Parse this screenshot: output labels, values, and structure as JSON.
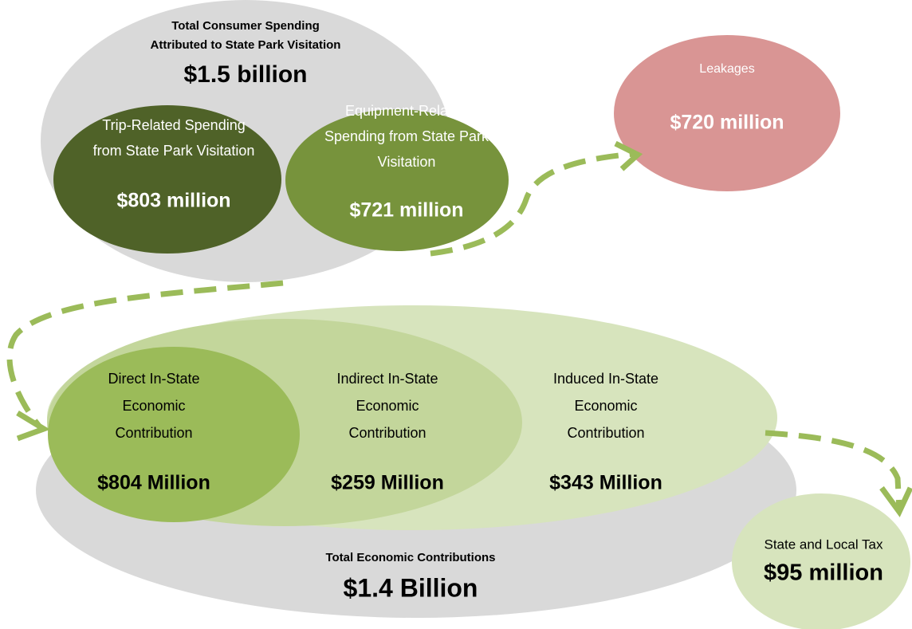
{
  "consumer_spending": {
    "title_lines": [
      "Total Consumer Spending",
      "Attributed to State Park Visitation"
    ],
    "amount": "$1.5 billion",
    "trip": {
      "label_lines": [
        "Trip-Related Spending",
        "from State Park Visitation"
      ],
      "amount": "$803 million"
    },
    "equipment": {
      "label_lines": [
        "Equipment-Related",
        "Spending from State Park",
        "Visitation"
      ],
      "amount": "$721 million"
    }
  },
  "leakages": {
    "label": "Leakages",
    "amount": "$720 million"
  },
  "economic_contributions": {
    "title": "Total Economic Contributions",
    "amount": "$1.4 Billion",
    "direct": {
      "label_lines": [
        "Direct In-State",
        "Economic",
        "Contribution"
      ],
      "amount": "$804 Million"
    },
    "indirect": {
      "label_lines": [
        "Indirect In-State",
        "Economic",
        "Contribution"
      ],
      "amount": "$259 Million"
    },
    "induced": {
      "label_lines": [
        "Induced In-State",
        "Economic",
        "Contribution"
      ],
      "amount": "$343 Million"
    }
  },
  "tax": {
    "label": "State and Local Tax",
    "amount": "$95 million"
  }
}
